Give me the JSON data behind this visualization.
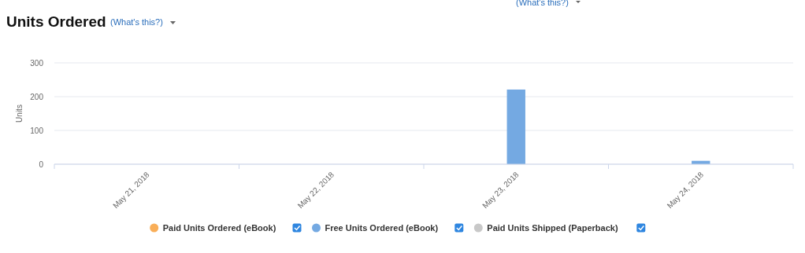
{
  "chart_data": {
    "type": "bar",
    "title": "Units Ordered",
    "ylabel": "Units",
    "annotations": [
      "(What's this?)",
      "(What's this?)"
    ],
    "categories": [
      "May 21, 2018",
      "May 22, 2018",
      "May 23, 2018",
      "May 24, 2018"
    ],
    "series": [
      {
        "name": "Paid Units Ordered (eBook)",
        "color": "#f9ae58",
        "values": [
          0,
          0,
          0,
          0
        ]
      },
      {
        "name": "Free Units Ordered (eBook)",
        "color": "#74a9e2",
        "values": [
          0,
          0,
          221,
          10
        ]
      },
      {
        "name": "Paid Units Shipped (Paperback)",
        "color": "#c8c8c8",
        "values": [
          0,
          0,
          0,
          0
        ]
      }
    ],
    "ylim": [
      0,
      300
    ],
    "yticks": [
      0,
      100,
      200,
      300
    ],
    "grid": "y",
    "legend": "bottom"
  }
}
